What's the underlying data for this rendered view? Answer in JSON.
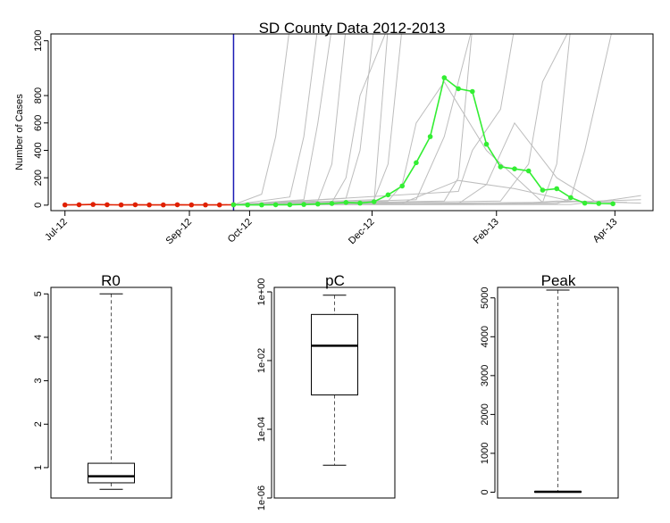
{
  "chart_data": [
    {
      "type": "line",
      "title": "SD County Data 2012-2013",
      "xlabel": "",
      "ylabel": "Number of Cases",
      "ylim": [
        -40,
        1250
      ],
      "yticks": [
        0,
        200,
        400,
        600,
        800,
        1200
      ],
      "xticks": [
        {
          "label": "Jul-12",
          "date": "2012-07-01"
        },
        {
          "label": "Sep-12",
          "date": "2012-09-01"
        },
        {
          "label": "Oct-12",
          "date": "2012-10-01"
        },
        {
          "label": "Dec-12",
          "date": "2012-12-01"
        },
        {
          "label": "Feb-13",
          "date": "2013-02-01"
        },
        {
          "label": "Apr-13",
          "date": "2013-04-01"
        }
      ],
      "xlim": [
        "2012-06-24",
        "2013-04-20"
      ],
      "vline": {
        "date": "2012-09-23",
        "color": "#1a1ab4"
      },
      "colors": {
        "observed": "#e02000",
        "forecast": "#33ee33",
        "simulations": "#bdbdbd"
      },
      "series": [
        {
          "role": "observed",
          "x": [
            "2012-07-01",
            "2012-07-08",
            "2012-07-15",
            "2012-07-22",
            "2012-07-29",
            "2012-08-05",
            "2012-08-12",
            "2012-08-19",
            "2012-08-26",
            "2012-09-02",
            "2012-09-09",
            "2012-09-16",
            "2012-09-23"
          ],
          "values": [
            2,
            3,
            5,
            3,
            2,
            3,
            2,
            2,
            3,
            2,
            2,
            2,
            3
          ]
        },
        {
          "role": "forecast",
          "x": [
            "2012-09-23",
            "2012-09-30",
            "2012-10-07",
            "2012-10-14",
            "2012-10-21",
            "2012-10-28",
            "2012-11-04",
            "2012-11-11",
            "2012-11-18",
            "2012-11-25",
            "2012-12-02",
            "2012-12-09",
            "2012-12-16",
            "2012-12-23",
            "2012-12-30",
            "2013-01-06",
            "2013-01-13",
            "2013-01-20",
            "2013-01-27",
            "2013-02-03",
            "2013-02-10",
            "2013-02-17",
            "2013-02-24",
            "2013-03-03",
            "2013-03-10",
            "2013-03-17",
            "2013-03-24",
            "2013-03-31"
          ],
          "values": [
            3,
            2,
            2,
            3,
            3,
            5,
            8,
            12,
            20,
            15,
            25,
            75,
            140,
            310,
            500,
            930,
            850,
            830,
            445,
            280,
            265,
            250,
            110,
            120,
            55,
            15,
            12,
            10
          ]
        }
      ],
      "simulations": [
        {
          "x": [
            "2012-09-23",
            "2012-10-07",
            "2012-10-14",
            "2012-10-21"
          ],
          "values": [
            3,
            80,
            500,
            1300
          ]
        },
        {
          "x": [
            "2012-09-23",
            "2012-10-21",
            "2012-10-28",
            "2012-11-04"
          ],
          "values": [
            3,
            60,
            500,
            1300
          ]
        },
        {
          "x": [
            "2012-09-23",
            "2012-10-28",
            "2012-11-04",
            "2012-11-11"
          ],
          "values": [
            3,
            40,
            600,
            1300
          ]
        },
        {
          "x": [
            "2012-09-23",
            "2012-11-04",
            "2012-11-11",
            "2012-11-18",
            "2012-11-25"
          ],
          "values": [
            3,
            30,
            300,
            1300,
            1300
          ]
        },
        {
          "x": [
            "2012-09-23",
            "2012-11-18",
            "2012-11-25",
            "2012-12-02"
          ],
          "values": [
            3,
            50,
            400,
            1300
          ]
        },
        {
          "x": [
            "2012-09-23",
            "2012-12-02",
            "2012-12-09",
            "2012-12-16"
          ],
          "values": [
            3,
            40,
            300,
            1300
          ]
        },
        {
          "x": [
            "2012-09-23",
            "2012-12-09",
            "2012-12-16",
            "2012-12-23",
            "2013-01-06",
            "2013-01-27",
            "2013-02-24"
          ],
          "values": [
            3,
            30,
            150,
            600,
            900,
            400,
            20
          ]
        },
        {
          "x": [
            "2012-09-23",
            "2012-12-23",
            "2013-01-06",
            "2013-01-20"
          ],
          "values": [
            3,
            40,
            500,
            1300
          ]
        },
        {
          "x": [
            "2012-09-23",
            "2013-01-06",
            "2013-01-13",
            "2013-01-20"
          ],
          "values": [
            3,
            30,
            200,
            1300
          ]
        },
        {
          "x": [
            "2012-09-23",
            "2013-01-13",
            "2013-01-27",
            "2013-02-10",
            "2013-03-03",
            "2013-03-24"
          ],
          "values": [
            3,
            10,
            150,
            600,
            200,
            10
          ]
        },
        {
          "x": [
            "2012-09-23",
            "2013-02-03",
            "2013-02-17",
            "2013-02-24",
            "2013-03-10"
          ],
          "values": [
            3,
            30,
            300,
            900,
            1300
          ]
        },
        {
          "x": [
            "2012-09-23",
            "2013-02-24",
            "2013-03-03",
            "2013-03-10"
          ],
          "values": [
            3,
            20,
            300,
            1300
          ]
        },
        {
          "x": [
            "2012-09-23",
            "2013-03-03",
            "2013-03-10",
            "2013-03-17",
            "2013-03-31"
          ],
          "values": [
            3,
            10,
            50,
            400,
            1300
          ]
        },
        {
          "x": [
            "2012-09-23",
            "2013-03-10",
            "2013-03-31",
            "2013-04-14"
          ],
          "values": [
            3,
            5,
            40,
            70
          ]
        },
        {
          "x": [
            "2012-09-23",
            "2013-01-20",
            "2013-03-03",
            "2013-04-14"
          ],
          "values": [
            3,
            5,
            20,
            40
          ]
        },
        {
          "x": [
            "2012-09-23",
            "2012-10-14",
            "2012-12-02",
            "2012-12-09"
          ],
          "values": [
            3,
            10,
            20,
            1300
          ]
        },
        {
          "x": [
            "2012-09-23",
            "2012-11-11",
            "2012-11-18",
            "2012-11-25",
            "2012-12-09"
          ],
          "values": [
            3,
            20,
            200,
            800,
            1300
          ]
        },
        {
          "x": [
            "2012-09-23",
            "2013-01-13",
            "2013-01-20",
            "2013-02-03",
            "2013-02-10"
          ],
          "values": [
            3,
            100,
            400,
            700,
            1300
          ]
        },
        {
          "x": [
            "2012-09-23",
            "2013-02-10",
            "2013-03-03",
            "2013-04-07"
          ],
          "values": [
            3,
            10,
            30,
            20
          ]
        },
        {
          "x": [
            "2012-09-23",
            "2012-12-16",
            "2013-01-13",
            "2013-02-10",
            "2013-03-10",
            "2013-04-14"
          ],
          "values": [
            3,
            15,
            180,
            120,
            30,
            15
          ]
        }
      ]
    },
    {
      "type": "boxplot",
      "title": "R0",
      "yscale": "linear",
      "yticks": [
        1,
        2,
        3,
        4,
        5
      ],
      "ylim": [
        0.3,
        5.15
      ],
      "box": {
        "whisker_low": 0.5,
        "q1": 0.65,
        "median": 0.8,
        "q3": 1.1,
        "whisker_high": 5.0
      }
    },
    {
      "type": "boxplot",
      "title": "pC",
      "yscale": "log10",
      "yticks": [
        1e-06,
        0.0001,
        0.01,
        1
      ],
      "ytick_labels": [
        "1e-06",
        "1e-04",
        "1e-02",
        "1e+00"
      ],
      "ylim": [
        1e-06,
        1.35
      ],
      "box": {
        "whisker_low": 9e-06,
        "q1": 0.001,
        "median": 0.027,
        "q3": 0.22,
        "whisker_high": 0.8
      }
    },
    {
      "type": "boxplot",
      "title": "Peak",
      "yscale": "linear",
      "yticks": [
        0,
        1000,
        2000,
        3000,
        4000,
        5000
      ],
      "ylim": [
        -150,
        5270
      ],
      "box": {
        "whisker_low": 0,
        "q1": 5,
        "median": 10,
        "q3": 20,
        "whisker_high": 5200
      }
    }
  ]
}
